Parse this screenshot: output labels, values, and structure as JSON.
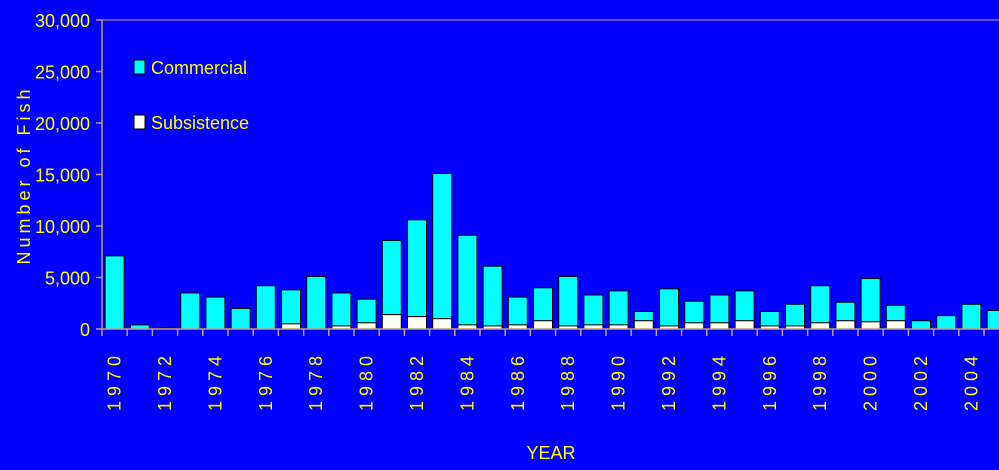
{
  "colors": {
    "background": "#0000ff",
    "text": "#ffff00",
    "axis": "#c0a080",
    "commercial": "#00ffff",
    "subsistence": "#fffff0",
    "bar_outline": "#000000"
  },
  "chart_data": {
    "type": "bar",
    "stacked": true,
    "xlabel": "YEAR",
    "ylabel": "Number of Fish",
    "ylim": [
      0,
      30000
    ],
    "yticks": [
      0,
      5000,
      10000,
      15000,
      20000,
      25000,
      30000
    ],
    "ytick_labels": [
      "0",
      "5,000",
      "10,000",
      "15,000",
      "20,000",
      "25,000",
      "30,000"
    ],
    "legend_position": "top-left",
    "categories": [
      "1970",
      "1971",
      "1972",
      "1973",
      "1974",
      "1975",
      "1976",
      "1977",
      "1978",
      "1979",
      "1980",
      "1981",
      "1982",
      "1983",
      "1984",
      "1985",
      "1986",
      "1987",
      "1988",
      "1989",
      "1990",
      "1991",
      "1992",
      "1993",
      "1994",
      "1995",
      "1996",
      "1997",
      "1998",
      "1999",
      "2000",
      "2001",
      "2002",
      "2003",
      "2004",
      "2005"
    ],
    "xtick_labels": [
      "1970",
      "1972",
      "1974",
      "1976",
      "1978",
      "1980",
      "1982",
      "1984",
      "1986",
      "1988",
      "1990",
      "1992",
      "1994",
      "1996",
      "1998",
      "2000",
      "2002",
      "2004"
    ],
    "series": [
      {
        "name": "Subsistence",
        "values": [
          0,
          0,
          0,
          0,
          0,
          0,
          0,
          500,
          0,
          300,
          600,
          1400,
          1200,
          1000,
          400,
          300,
          400,
          800,
          300,
          400,
          400,
          800,
          300,
          600,
          600,
          800,
          300,
          300,
          600,
          800,
          700,
          800,
          0,
          0,
          0,
          0
        ]
      },
      {
        "name": "Commercial",
        "values": [
          7100,
          400,
          100,
          3500,
          3100,
          2000,
          4200,
          3300,
          5100,
          3200,
          2300,
          7200,
          9400,
          14100,
          8700,
          5800,
          2700,
          3200,
          4800,
          2900,
          3300,
          900,
          3600,
          2100,
          2700,
          2900,
          1400,
          2100,
          3600,
          1800,
          4200,
          1500,
          800,
          1300,
          2400,
          1800
        ]
      }
    ]
  }
}
